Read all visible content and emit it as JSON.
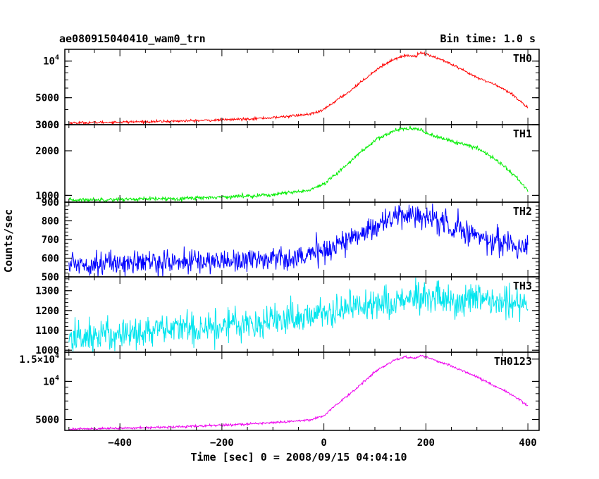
{
  "header": {
    "title": "ae080915040410_wam0_trn",
    "bin_time": "Bin time: 1.0 s"
  },
  "chart_data": {
    "type": "line",
    "xlabel": "Time [sec] 0 = 2008/09/15 04:04:10",
    "ylabel": "Counts/sec",
    "xlim": [
      -508,
      422
    ],
    "xticks": [
      -400,
      -200,
      0,
      200,
      400
    ],
    "xtick_labels": [
      "−400",
      "−200",
      "0",
      "200",
      "400"
    ],
    "grid": false,
    "panels": [
      {
        "name": "TH0",
        "color": "#ff0000",
        "scale": "log",
        "ylim": [
          3000,
          12500
        ],
        "yticks": [
          {
            "v": 3000,
            "label": "3000"
          },
          {
            "v": 5000,
            "label": "5000"
          },
          {
            "v": 10000,
            "label": "10^4"
          }
        ],
        "noise": 0.012,
        "x": [
          -500,
          -400,
          -300,
          -200,
          -100,
          -30,
          -10,
          0,
          20,
          50,
          80,
          110,
          140,
          160,
          180,
          190,
          200,
          230,
          270,
          300,
          340,
          370,
          400
        ],
        "y": [
          3100,
          3150,
          3200,
          3280,
          3420,
          3650,
          3820,
          4000,
          4600,
          5600,
          7100,
          8900,
          10500,
          11100,
          11000,
          11800,
          11400,
          10300,
          8500,
          7300,
          6300,
          5300,
          4100
        ]
      },
      {
        "name": "TH1",
        "color": "#00ee00",
        "scale": "log",
        "ylim": [
          900,
          3000
        ],
        "yticks": [
          {
            "v": 1000,
            "label": "1000"
          },
          {
            "v": 2000,
            "label": "2000"
          },
          {
            "v": 3000,
            "label": "3000"
          }
        ],
        "noise": 0.015,
        "x": [
          -500,
          -400,
          -300,
          -200,
          -100,
          -30,
          0,
          30,
          60,
          100,
          140,
          160,
          190,
          210,
          240,
          270,
          300,
          330,
          360,
          400
        ],
        "y": [
          930,
          940,
          950,
          975,
          1010,
          1080,
          1180,
          1440,
          1800,
          2330,
          2760,
          2820,
          2770,
          2560,
          2380,
          2230,
          2080,
          1820,
          1500,
          1080
        ]
      },
      {
        "name": "TH2",
        "color": "#0000ff",
        "scale": "linear",
        "ylim": [
          500,
          900
        ],
        "yticks": [
          {
            "v": 500,
            "label": "500"
          },
          {
            "v": 600,
            "label": "600"
          },
          {
            "v": 700,
            "label": "700"
          },
          {
            "v": 800,
            "label": "800"
          },
          {
            "v": 900,
            "label": "900"
          }
        ],
        "noise_abs": 32,
        "x": [
          -500,
          -400,
          -300,
          -200,
          -100,
          -30,
          0,
          50,
          100,
          140,
          170,
          200,
          250,
          300,
          350,
          400
        ],
        "y": [
          570,
          575,
          580,
          585,
          598,
          615,
          640,
          700,
          775,
          820,
          835,
          820,
          775,
          720,
          680,
          660
        ]
      },
      {
        "name": "TH3",
        "color": "#00e5ee",
        "scale": "linear",
        "ylim": [
          990,
          1370
        ],
        "yticks": [
          {
            "v": 1000,
            "label": "1000"
          },
          {
            "v": 1100,
            "label": "1100"
          },
          {
            "v": 1200,
            "label": "1200"
          },
          {
            "v": 1300,
            "label": "1300"
          }
        ],
        "noise_abs": 42,
        "x": [
          -500,
          -400,
          -300,
          -200,
          -100,
          0,
          50,
          100,
          150,
          200,
          250,
          300,
          350,
          400
        ],
        "y": [
          1060,
          1085,
          1105,
          1125,
          1150,
          1185,
          1215,
          1240,
          1255,
          1255,
          1250,
          1245,
          1240,
          1245
        ]
      },
      {
        "name": "TH0123",
        "color": "#ee00ee",
        "scale": "log",
        "ylim": [
          4100,
          17000
        ],
        "yticks": [
          {
            "v": 5000,
            "label": "5000"
          },
          {
            "v": 10000,
            "label": "10^4"
          },
          {
            "v": 15000,
            "label": "1.5×10^4"
          }
        ],
        "noise": 0.01,
        "x": [
          -500,
          -400,
          -300,
          -200,
          -100,
          -30,
          0,
          30,
          60,
          100,
          140,
          160,
          180,
          190,
          210,
          250,
          290,
          330,
          370,
          400
        ],
        "y": [
          4200,
          4260,
          4360,
          4500,
          4720,
          4950,
          5350,
          6800,
          8500,
          11800,
          14800,
          15600,
          15200,
          16000,
          15100,
          13200,
          11300,
          9400,
          7800,
          6400
        ]
      }
    ]
  }
}
